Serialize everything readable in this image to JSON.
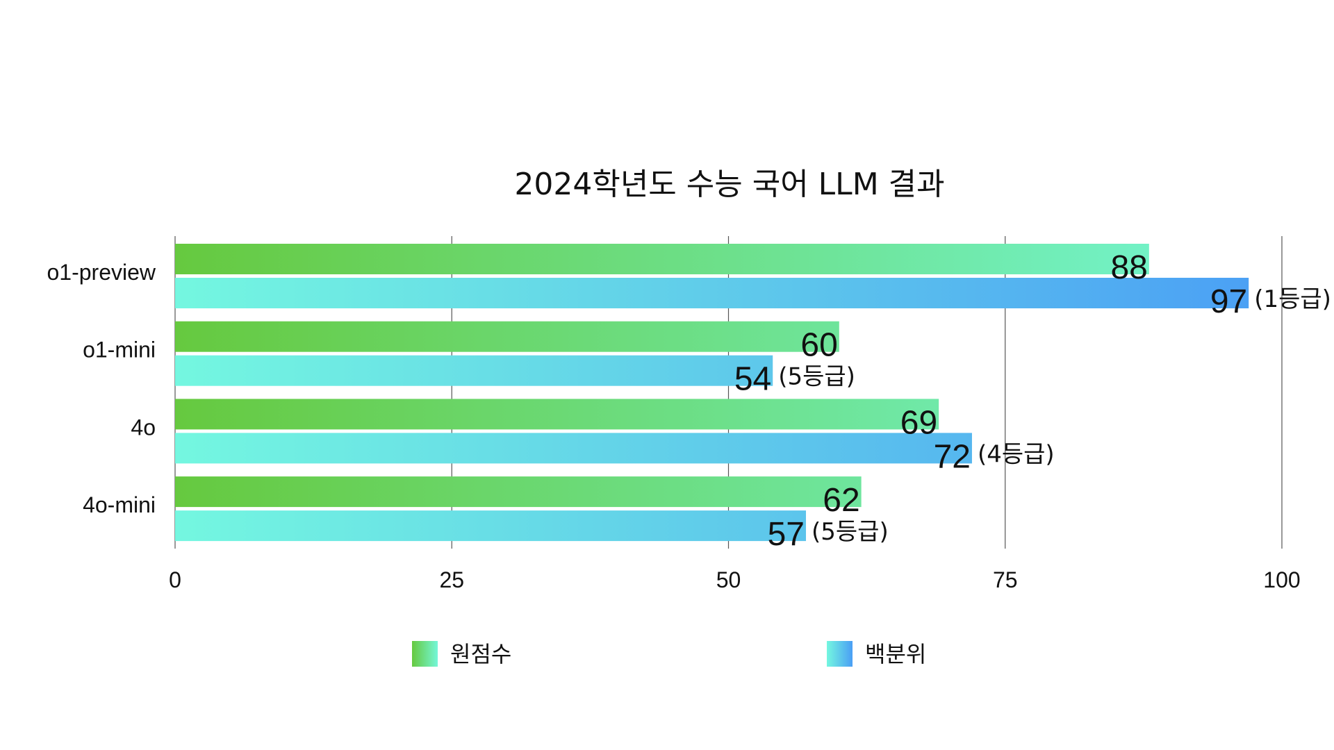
{
  "chart_data": {
    "type": "bar",
    "orientation": "horizontal",
    "title": "2024학년도 수능 국어 LLM 결과",
    "xlabel": "",
    "ylabel": "",
    "categories": [
      "o1-preview",
      "o1-mini",
      "4o",
      "4o-mini"
    ],
    "series": [
      {
        "name": "원점수",
        "values": [
          88,
          60,
          69,
          62
        ],
        "gradient": [
          "#66c93f",
          "#74f7d8"
        ]
      },
      {
        "name": "백분위",
        "values": [
          97,
          54,
          72,
          57
        ],
        "annotations": [
          "(1등급)",
          "(5등급)",
          "(4등급)",
          "(5등급)"
        ],
        "gradient": [
          "#74f7e0",
          "#4a9ef5"
        ]
      }
    ],
    "xlim": [
      0,
      100
    ],
    "x_ticks": [
      0,
      25,
      50,
      75,
      100
    ],
    "x_tick_labels": [
      "0",
      "25",
      "50",
      "75",
      "100"
    ],
    "grid": "vertical",
    "legend_position": "bottom"
  }
}
